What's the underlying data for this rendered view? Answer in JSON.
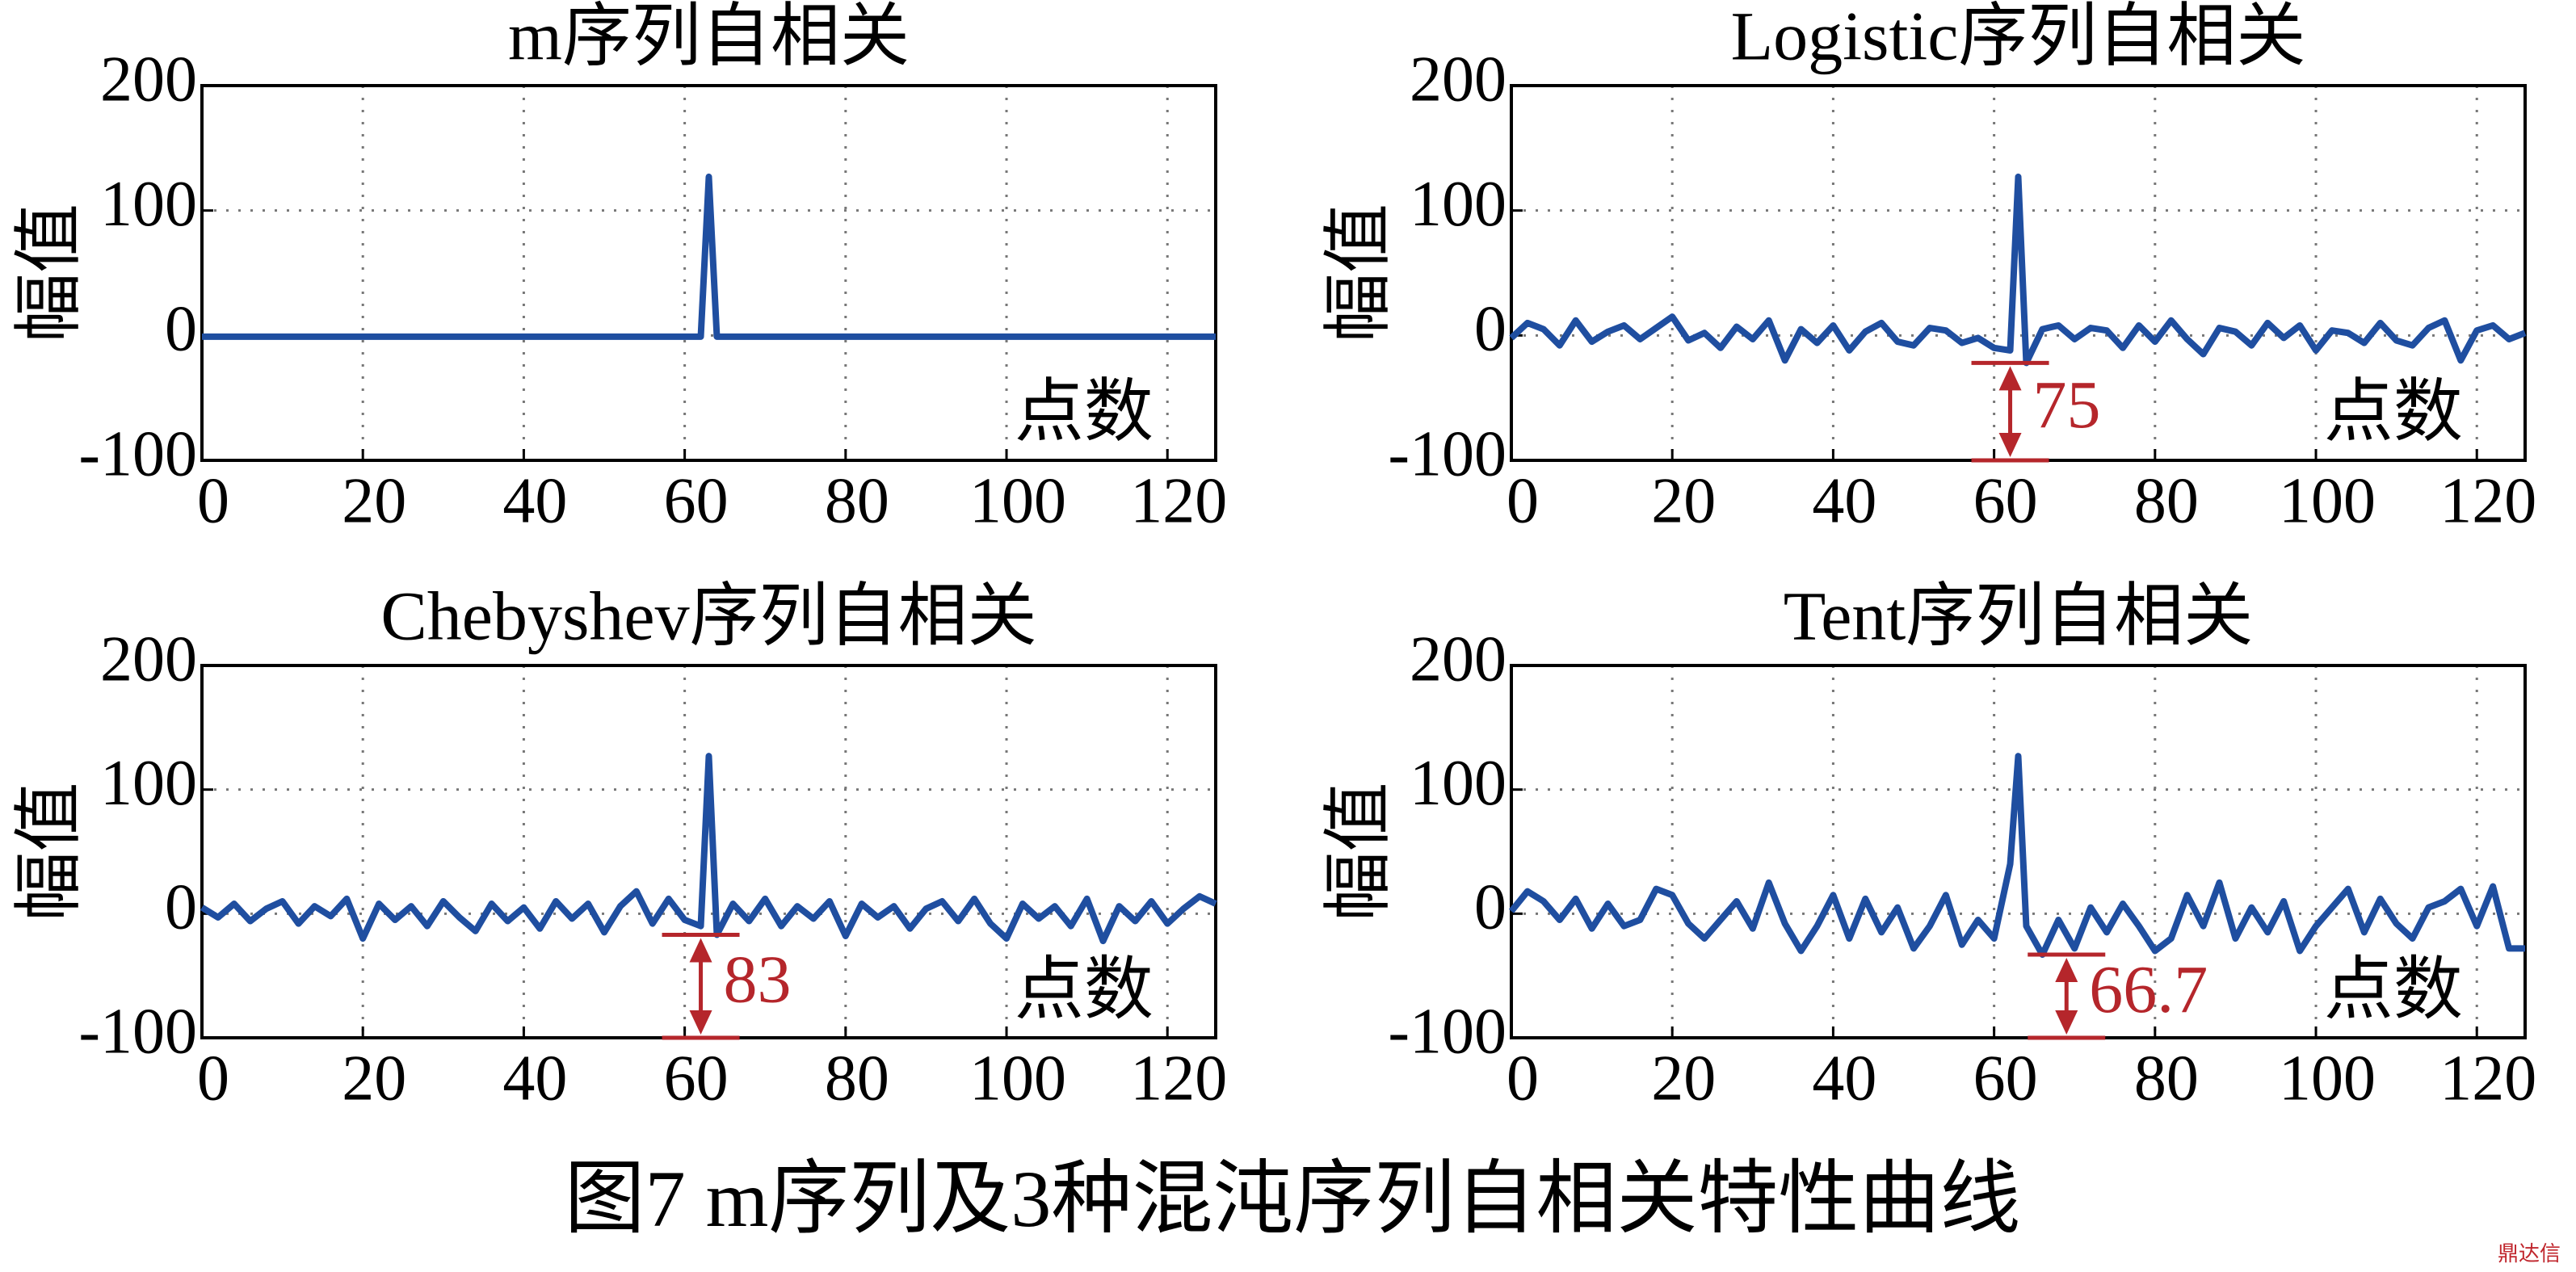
{
  "chart_data": [
    {
      "type": "line",
      "title": "m序列自相关",
      "ylabel": "幅值",
      "xlabel": "点数",
      "xlim": [
        0,
        126
      ],
      "ylim": [
        -100,
        200
      ],
      "xticks": [
        0,
        20,
        40,
        60,
        80,
        100,
        120
      ],
      "yticks": [
        -100,
        0,
        100,
        200
      ],
      "grid": true,
      "series": [
        {
          "color": "#1f4ea0",
          "x": [
            0,
            62,
            63,
            64,
            126
          ],
          "values": [
            -1,
            -1,
            127,
            -1,
            -1
          ]
        }
      ]
    },
    {
      "type": "line",
      "title": "Logistic序列自相关",
      "ylabel": "幅值",
      "xlabel": "点数",
      "xlim": [
        0,
        126
      ],
      "ylim": [
        -100,
        200
      ],
      "xticks": [
        0,
        20,
        40,
        60,
        80,
        100,
        120
      ],
      "yticks": [
        -100,
        0,
        100,
        200
      ],
      "grid": true,
      "series": [
        {
          "color": "#1f4ea0",
          "x": [
            0,
            2,
            4,
            6,
            8,
            10,
            12,
            14,
            16,
            18,
            20,
            22,
            24,
            26,
            28,
            30,
            32,
            34,
            36,
            38,
            40,
            42,
            44,
            46,
            48,
            50,
            52,
            54,
            56,
            58,
            60,
            62,
            63,
            64,
            66,
            68,
            70,
            72,
            74,
            76,
            78,
            80,
            82,
            84,
            86,
            88,
            90,
            92,
            94,
            96,
            98,
            100,
            102,
            104,
            106,
            108,
            110,
            112,
            114,
            116,
            118,
            120,
            122,
            124,
            126
          ],
          "values": [
            -2,
            10,
            5,
            -8,
            12,
            -5,
            3,
            8,
            -3,
            6,
            15,
            -4,
            2,
            -10,
            7,
            -3,
            12,
            -20,
            5,
            -6,
            8,
            -12,
            3,
            10,
            -5,
            -8,
            6,
            4,
            -6,
            -2,
            -10,
            -12,
            127,
            -22,
            5,
            8,
            -3,
            6,
            4,
            -10,
            8,
            -5,
            12,
            -3,
            -15,
            6,
            3,
            -8,
            10,
            -2,
            8,
            -12,
            4,
            2,
            -6,
            10,
            -4,
            -8,
            6,
            12,
            -20,
            4,
            8,
            -3,
            2
          ]
        }
      ],
      "annotation": {
        "text": "75",
        "x": 62,
        "y1": -22,
        "y2": -100,
        "color": "#b5262b"
      }
    },
    {
      "type": "line",
      "title": "Chebyshev序列自相关",
      "ylabel": "幅值",
      "xlabel": "点数",
      "xlim": [
        0,
        126
      ],
      "ylim": [
        -100,
        200
      ],
      "xticks": [
        0,
        20,
        40,
        60,
        80,
        100,
        120
      ],
      "yticks": [
        -100,
        0,
        100,
        200
      ],
      "grid": true,
      "series": [
        {
          "color": "#1f4ea0",
          "x": [
            0,
            2,
            4,
            6,
            8,
            10,
            12,
            14,
            16,
            18,
            20,
            22,
            24,
            26,
            28,
            30,
            32,
            34,
            36,
            38,
            40,
            42,
            44,
            46,
            48,
            50,
            52,
            54,
            56,
            58,
            60,
            62,
            63,
            64,
            66,
            68,
            70,
            72,
            74,
            76,
            78,
            80,
            82,
            84,
            86,
            88,
            90,
            92,
            94,
            96,
            98,
            100,
            102,
            104,
            106,
            108,
            110,
            112,
            114,
            116,
            118,
            120,
            122,
            124,
            126
          ],
          "values": [
            5,
            -3,
            8,
            -6,
            4,
            10,
            -8,
            6,
            -2,
            12,
            -20,
            8,
            -5,
            6,
            -10,
            10,
            -3,
            -14,
            8,
            -6,
            5,
            -12,
            10,
            -4,
            8,
            -15,
            6,
            18,
            -8,
            12,
            -5,
            -10,
            127,
            -17,
            8,
            -6,
            12,
            -10,
            6,
            -4,
            10,
            -18,
            8,
            -3,
            6,
            -12,
            4,
            10,
            -6,
            12,
            -8,
            -20,
            8,
            -4,
            6,
            -10,
            12,
            -22,
            6,
            -6,
            10,
            -8,
            4,
            14,
            8
          ]
        }
      ],
      "annotation": {
        "text": "83",
        "x": 62,
        "y1": -17,
        "y2": -100,
        "color": "#b5262b"
      }
    },
    {
      "type": "line",
      "title": "Tent序列自相关",
      "ylabel": "幅值",
      "xlabel": "点数",
      "xlim": [
        0,
        126
      ],
      "ylim": [
        -100,
        200
      ],
      "xticks": [
        0,
        20,
        40,
        60,
        80,
        100,
        120
      ],
      "yticks": [
        -100,
        0,
        100,
        200
      ],
      "grid": true,
      "series": [
        {
          "color": "#1f4ea0",
          "x": [
            0,
            2,
            4,
            6,
            8,
            10,
            12,
            14,
            16,
            18,
            20,
            22,
            24,
            26,
            28,
            30,
            32,
            34,
            36,
            38,
            40,
            42,
            44,
            46,
            48,
            50,
            52,
            54,
            56,
            58,
            60,
            62,
            63,
            64,
            66,
            68,
            70,
            72,
            74,
            76,
            78,
            80,
            82,
            84,
            86,
            88,
            90,
            92,
            94,
            96,
            98,
            100,
            102,
            104,
            106,
            108,
            110,
            112,
            114,
            116,
            118,
            120,
            122,
            124,
            126
          ],
          "values": [
            2,
            18,
            10,
            -5,
            12,
            -12,
            8,
            -10,
            -5,
            20,
            15,
            -8,
            -20,
            -5,
            10,
            -12,
            25,
            -8,
            -30,
            -10,
            15,
            -20,
            12,
            -15,
            5,
            -28,
            -10,
            15,
            -25,
            -5,
            -20,
            40,
            127,
            -10,
            -33,
            -5,
            -28,
            5,
            -15,
            8,
            -10,
            -30,
            -20,
            15,
            -10,
            25,
            -20,
            5,
            -15,
            10,
            -30,
            -10,
            5,
            20,
            -15,
            12,
            -8,
            -20,
            5,
            10,
            20,
            -10,
            22,
            -28,
            -28
          ]
        }
      ],
      "annotation": {
        "text": "66.7",
        "x": 69,
        "y1": -33,
        "y2": -100,
        "color": "#b5262b"
      }
    }
  ],
  "caption": "图7  m序列及3种混沌序列自相关特性曲线",
  "watermark": "鼎达信"
}
